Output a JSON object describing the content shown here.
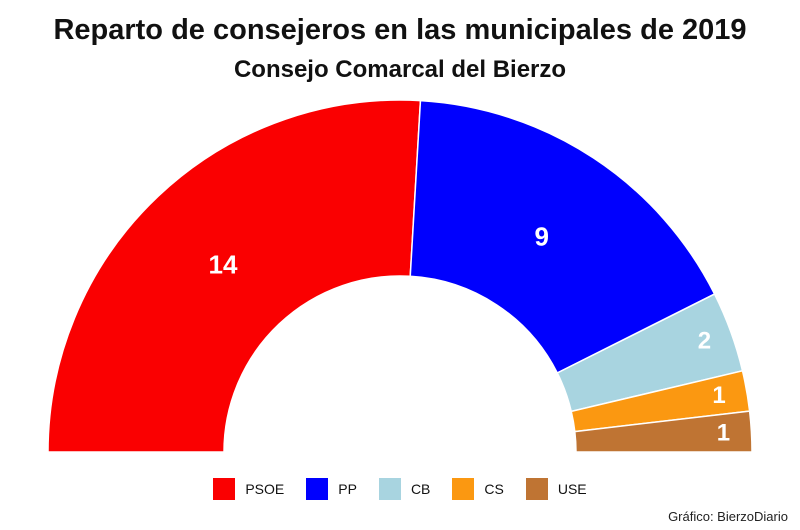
{
  "chart_data": {
    "type": "pie",
    "variant": "semicircle-parliament",
    "title": "Reparto de consejeros en las municipales de 2019",
    "subtitle": "Consejo Comarcal del Bierzo",
    "categories": [
      "PSOE",
      "PP",
      "CB",
      "CS",
      "USE"
    ],
    "values": [
      14,
      9,
      2,
      1,
      1
    ],
    "colors": [
      "#fa0001",
      "#0000fe",
      "#a8d4e0",
      "#fb9811",
      "#bf7433"
    ],
    "legend_position": "bottom"
  },
  "credit": "Gráfico: BierzoDiario"
}
